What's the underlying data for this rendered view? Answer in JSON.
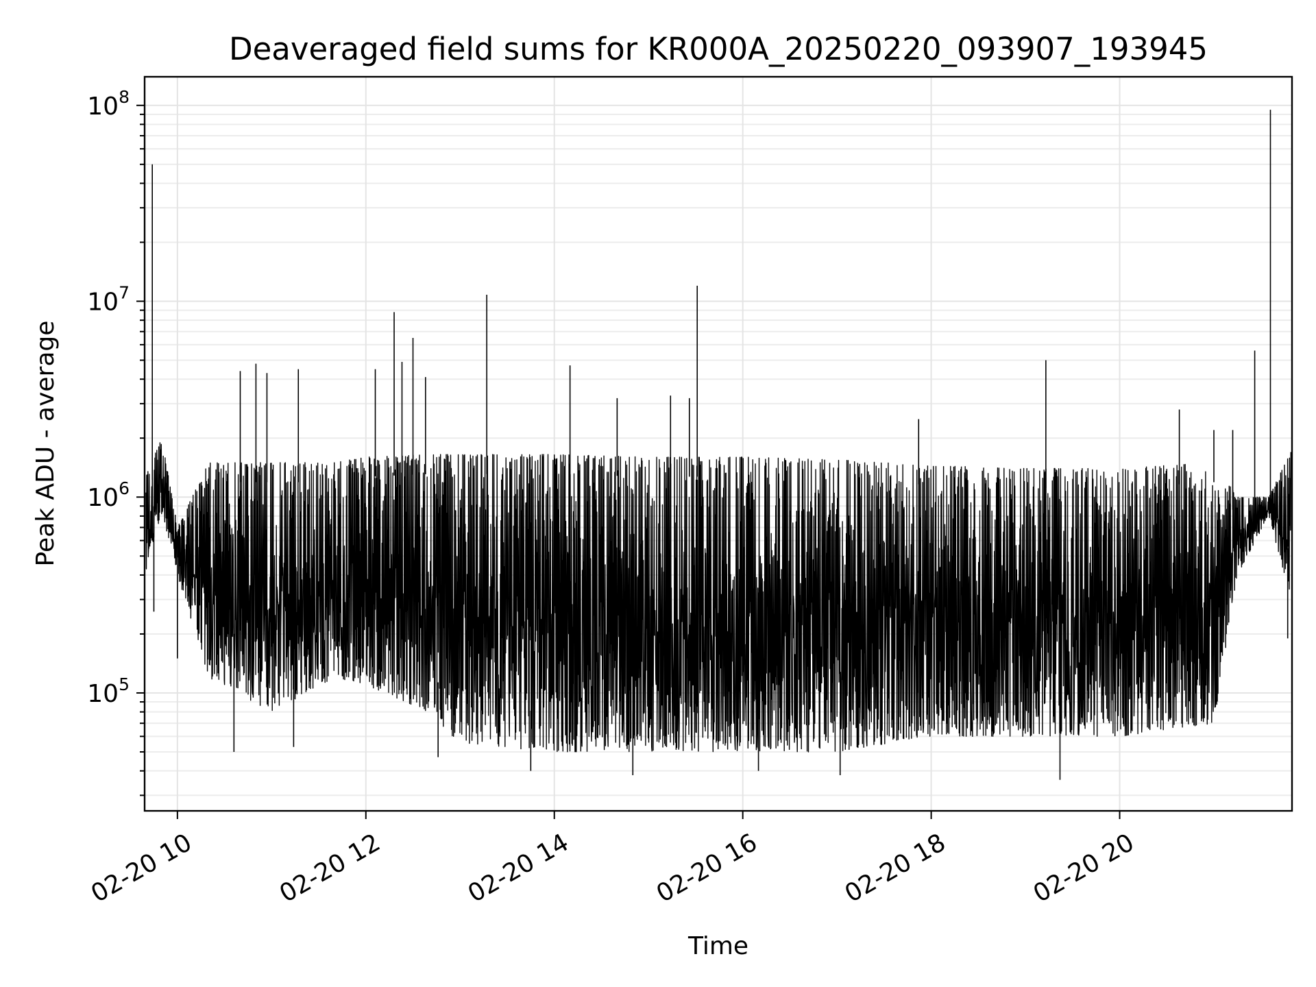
{
  "chart_data": {
    "type": "line",
    "title": "Deaveraged field sums for KR000A_20250220_093907_193945",
    "xlabel": "Time",
    "ylabel": "Peak ADU - average",
    "xlim": [
      "2025-02-20T09:39:07",
      "2025-02-20T21:49:45"
    ],
    "ylim": [
      25000,
      140000000
    ],
    "yscale": "log",
    "grid": true,
    "grid_minor": true,
    "legend": "none",
    "line_color": "#000000",
    "x_ticks": [
      {
        "value": "2025-02-20T10:00",
        "label": "02-20 10"
      },
      {
        "value": "2025-02-20T12:00",
        "label": "02-20 12"
      },
      {
        "value": "2025-02-20T14:00",
        "label": "02-20 14"
      },
      {
        "value": "2025-02-20T16:00",
        "label": "02-20 16"
      },
      {
        "value": "2025-02-20T18:00",
        "label": "02-20 18"
      },
      {
        "value": "2025-02-20T20:00",
        "label": "02-20 20"
      }
    ],
    "y_ticks": [
      {
        "value": 100000,
        "base": "10",
        "exp": "5"
      },
      {
        "value": 1000000,
        "base": "10",
        "exp": "6"
      },
      {
        "value": 10000000,
        "base": "10",
        "exp": "7"
      },
      {
        "value": 100000000,
        "base": "10",
        "exp": "8"
      }
    ],
    "series": [
      {
        "baseline_range": [
          {
            "x": "2025-02-20T09:40",
            "low": 400000,
            "high": 1300000
          },
          {
            "x": "2025-02-20T09:50",
            "low": 800000,
            "high": 2000000
          },
          {
            "x": "2025-02-20T10:00",
            "low": 400000,
            "high": 700000
          },
          {
            "x": "2025-02-20T10:20",
            "low": 120000,
            "high": 1500000
          },
          {
            "x": "2025-02-20T11:00",
            "low": 80000,
            "high": 1500000
          },
          {
            "x": "2025-02-20T11:40",
            "low": 120000,
            "high": 1500000
          },
          {
            "x": "2025-02-20T12:00",
            "low": 110000,
            "high": 1600000
          },
          {
            "x": "2025-02-20T12:40",
            "low": 80000,
            "high": 1650000
          },
          {
            "x": "2025-02-20T13:00",
            "low": 55000,
            "high": 1650000
          },
          {
            "x": "2025-02-20T14:00",
            "low": 50000,
            "high": 1650000
          },
          {
            "x": "2025-02-20T15:00",
            "low": 50000,
            "high": 1600000
          },
          {
            "x": "2025-02-20T16:00",
            "low": 50000,
            "high": 1600000
          },
          {
            "x": "2025-02-20T17:00",
            "low": 50000,
            "high": 1550000
          },
          {
            "x": "2025-02-20T18:00",
            "low": 60000,
            "high": 1450000
          },
          {
            "x": "2025-02-20T19:00",
            "low": 60000,
            "high": 1400000
          },
          {
            "x": "2025-02-20T20:00",
            "low": 60000,
            "high": 1400000
          },
          {
            "x": "2025-02-20T21:00",
            "low": 70000,
            "high": 1500000
          },
          {
            "x": "2025-02-20T21:15",
            "low": 400000,
            "high": 1000000
          },
          {
            "x": "2025-02-20T21:35",
            "low": 800000,
            "high": 1000000
          },
          {
            "x": "2025-02-20T21:49",
            "low": 300000,
            "high": 1700000
          }
        ],
        "peaks": [
          {
            "x": "2025-02-20T09:44",
            "y": 50000000
          },
          {
            "x": "2025-02-20T10:40",
            "y": 4400000
          },
          {
            "x": "2025-02-20T10:50",
            "y": 4800000
          },
          {
            "x": "2025-02-20T10:57",
            "y": 4300000
          },
          {
            "x": "2025-02-20T11:17",
            "y": 4500000
          },
          {
            "x": "2025-02-20T12:06",
            "y": 4500000
          },
          {
            "x": "2025-02-20T12:18",
            "y": 8800000
          },
          {
            "x": "2025-02-20T12:23",
            "y": 4900000
          },
          {
            "x": "2025-02-20T12:30",
            "y": 6500000
          },
          {
            "x": "2025-02-20T12:38",
            "y": 4100000
          },
          {
            "x": "2025-02-20T13:17",
            "y": 10800000
          },
          {
            "x": "2025-02-20T14:10",
            "y": 4700000
          },
          {
            "x": "2025-02-20T14:40",
            "y": 3200000
          },
          {
            "x": "2025-02-20T15:14",
            "y": 3300000
          },
          {
            "x": "2025-02-20T15:26",
            "y": 3200000
          },
          {
            "x": "2025-02-20T15:31",
            "y": 12000000
          },
          {
            "x": "2025-02-20T17:52",
            "y": 2500000
          },
          {
            "x": "2025-02-20T19:13",
            "y": 5000000
          },
          {
            "x": "2025-02-20T20:38",
            "y": 2800000
          },
          {
            "x": "2025-02-20T21:00",
            "y": 2200000
          },
          {
            "x": "2025-02-20T21:12",
            "y": 2200000
          },
          {
            "x": "2025-02-20T21:26",
            "y": 5600000
          },
          {
            "x": "2025-02-20T21:36",
            "y": 95000000
          }
        ],
        "troughs": [
          {
            "x": "2025-02-20T09:45",
            "y": 260000
          },
          {
            "x": "2025-02-20T10:00",
            "y": 150000
          },
          {
            "x": "2025-02-20T10:36",
            "y": 50000
          },
          {
            "x": "2025-02-20T11:14",
            "y": 53000
          },
          {
            "x": "2025-02-20T12:46",
            "y": 47000
          },
          {
            "x": "2025-02-20T13:45",
            "y": 40000
          },
          {
            "x": "2025-02-20T14:50",
            "y": 38000
          },
          {
            "x": "2025-02-20T16:10",
            "y": 40000
          },
          {
            "x": "2025-02-20T17:02",
            "y": 38000
          },
          {
            "x": "2025-02-20T19:22",
            "y": 36000
          },
          {
            "x": "2025-02-20T21:47",
            "y": 190000
          }
        ]
      }
    ]
  }
}
